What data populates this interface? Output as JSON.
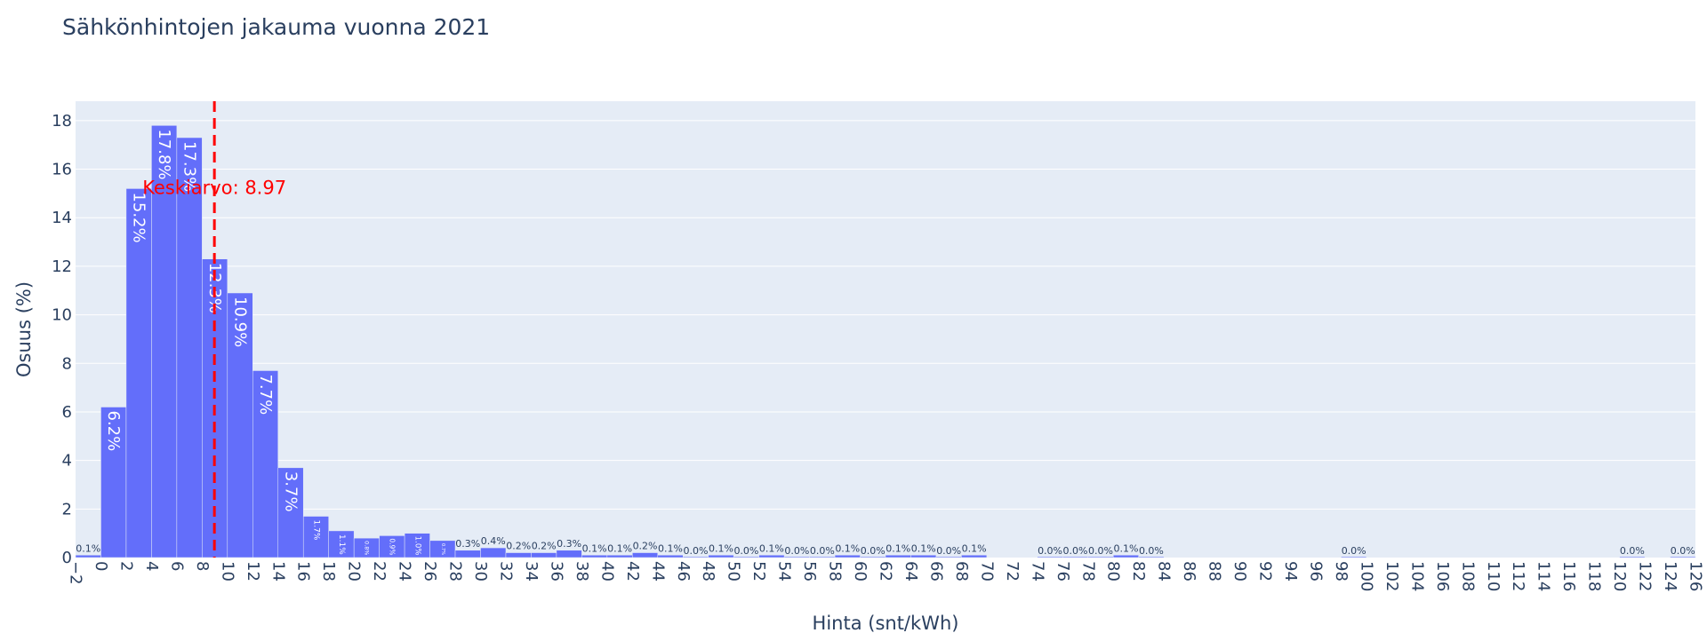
{
  "chart_data": {
    "type": "bar",
    "title": "Sähkönhintojen jakauma vuonna 2021",
    "xlabel": "Hinta (snt/kWh)",
    "ylabel": "Osuus (%)",
    "xlim": [
      -2,
      126
    ],
    "ylim": [
      0,
      18.8
    ],
    "bin_width": 2,
    "x_ticks": [
      -2,
      0,
      2,
      4,
      6,
      8,
      10,
      12,
      14,
      16,
      18,
      20,
      22,
      24,
      26,
      28,
      30,
      32,
      34,
      36,
      38,
      40,
      42,
      44,
      46,
      48,
      50,
      52,
      54,
      56,
      58,
      60,
      62,
      64,
      66,
      68,
      70,
      72,
      74,
      76,
      78,
      80,
      82,
      84,
      86,
      88,
      90,
      92,
      94,
      96,
      98,
      100,
      102,
      104,
      106,
      108,
      110,
      112,
      114,
      116,
      118,
      120,
      122,
      124,
      126
    ],
    "x_tick_labels": [
      "−2",
      "0",
      "2",
      "4",
      "6",
      "8",
      "10",
      "12",
      "14",
      "16",
      "18",
      "20",
      "22",
      "24",
      "26",
      "28",
      "30",
      "32",
      "34",
      "36",
      "38",
      "40",
      "42",
      "44",
      "46",
      "48",
      "50",
      "52",
      "54",
      "56",
      "58",
      "60",
      "62",
      "64",
      "66",
      "68",
      "70",
      "72",
      "74",
      "76",
      "78",
      "80",
      "82",
      "84",
      "86",
      "88",
      "90",
      "92",
      "94",
      "96",
      "98",
      "100",
      "102",
      "104",
      "106",
      "108",
      "110",
      "112",
      "114",
      "116",
      "118",
      "120",
      "122",
      "124",
      "126"
    ],
    "y_ticks": [
      0,
      2,
      4,
      6,
      8,
      10,
      12,
      14,
      16,
      18
    ],
    "y_tick_labels": [
      "0",
      "2",
      "4",
      "6",
      "8",
      "10",
      "12",
      "14",
      "16",
      "18"
    ],
    "grid": true,
    "color": "#636efa",
    "plot_bgcolor": "#e5ecf6",
    "bins": [
      {
        "x0": -2,
        "value": 0.1,
        "label": "0.1%"
      },
      {
        "x0": 0,
        "value": 6.2,
        "label": "6.2%"
      },
      {
        "x0": 2,
        "value": 15.2,
        "label": "15.2%"
      },
      {
        "x0": 4,
        "value": 17.8,
        "label": "17.8%"
      },
      {
        "x0": 6,
        "value": 17.3,
        "label": "17.3%"
      },
      {
        "x0": 8,
        "value": 12.3,
        "label": "12.3%"
      },
      {
        "x0": 10,
        "value": 10.9,
        "label": "10.9%"
      },
      {
        "x0": 12,
        "value": 7.7,
        "label": "7.7%"
      },
      {
        "x0": 14,
        "value": 3.7,
        "label": "3.7%"
      },
      {
        "x0": 16,
        "value": 1.7,
        "label": "1.7%"
      },
      {
        "x0": 18,
        "value": 1.1,
        "label": "1.1%"
      },
      {
        "x0": 20,
        "value": 0.8,
        "label": "0.8%"
      },
      {
        "x0": 22,
        "value": 0.9,
        "label": "0.9%"
      },
      {
        "x0": 24,
        "value": 1.0,
        "label": "1.0%"
      },
      {
        "x0": 26,
        "value": 0.7,
        "label": "0.7%"
      },
      {
        "x0": 28,
        "value": 0.3,
        "label": "0.3%"
      },
      {
        "x0": 30,
        "value": 0.4,
        "label": "0.4%"
      },
      {
        "x0": 32,
        "value": 0.2,
        "label": "0.2%"
      },
      {
        "x0": 34,
        "value": 0.2,
        "label": "0.2%"
      },
      {
        "x0": 36,
        "value": 0.3,
        "label": "0.3%"
      },
      {
        "x0": 38,
        "value": 0.1,
        "label": "0.1%"
      },
      {
        "x0": 40,
        "value": 0.1,
        "label": "0.1%"
      },
      {
        "x0": 42,
        "value": 0.2,
        "label": "0.2%"
      },
      {
        "x0": 44,
        "value": 0.1,
        "label": "0.1%"
      },
      {
        "x0": 46,
        "value": 0.0,
        "label": "0.0%"
      },
      {
        "x0": 48,
        "value": 0.1,
        "label": "0.1%"
      },
      {
        "x0": 50,
        "value": 0.0,
        "label": "0.0%"
      },
      {
        "x0": 52,
        "value": 0.1,
        "label": "0.1%"
      },
      {
        "x0": 54,
        "value": 0.0,
        "label": "0.0%"
      },
      {
        "x0": 56,
        "value": 0.0,
        "label": "0.0%"
      },
      {
        "x0": 58,
        "value": 0.1,
        "label": "0.1%"
      },
      {
        "x0": 60,
        "value": 0.0,
        "label": "0.0%"
      },
      {
        "x0": 62,
        "value": 0.1,
        "label": "0.1%"
      },
      {
        "x0": 64,
        "value": 0.1,
        "label": "0.1%"
      },
      {
        "x0": 66,
        "value": 0.0,
        "label": "0.0%"
      },
      {
        "x0": 68,
        "value": 0.1,
        "label": "0.1%"
      },
      {
        "x0": 74,
        "value": 0.0,
        "label": "0.0%"
      },
      {
        "x0": 76,
        "value": 0.0,
        "label": "0.0%"
      },
      {
        "x0": 78,
        "value": 0.0,
        "label": "0.0%"
      },
      {
        "x0": 80,
        "value": 0.1,
        "label": "0.1%"
      },
      {
        "x0": 82,
        "value": 0.0,
        "label": "0.0%"
      },
      {
        "x0": 98,
        "value": 0.0,
        "label": "0.0%"
      },
      {
        "x0": 120,
        "value": 0.0,
        "label": "0.0%"
      },
      {
        "x0": 124,
        "value": 0.0,
        "label": "0.0%"
      }
    ],
    "mean": {
      "value": 8.97,
      "label": "Keskiarvo: 8.97",
      "color": "#ff0000"
    }
  }
}
